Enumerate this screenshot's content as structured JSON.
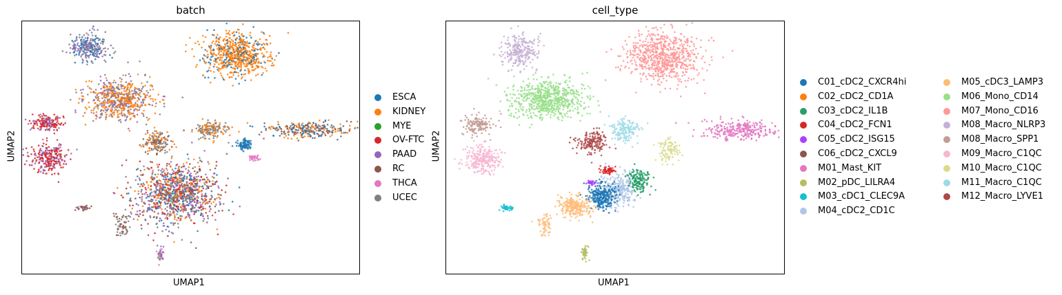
{
  "chart_data": [
    {
      "type": "scatter",
      "title": "batch",
      "xlabel": "UMAP1",
      "ylabel": "UMAP2",
      "grid": false,
      "legend_placement": "right",
      "series": [
        {
          "name": "ESCA",
          "color": "#1f77b4"
        },
        {
          "name": "KIDNEY",
          "color": "#ff7f0e"
        },
        {
          "name": "MYE",
          "color": "#2ca02c"
        },
        {
          "name": "OV-FTC",
          "color": "#d62728"
        },
        {
          "name": "PAAD",
          "color": "#9467bd"
        },
        {
          "name": "RC",
          "color": "#8c564b"
        },
        {
          "name": "THCA",
          "color": "#e377c2"
        },
        {
          "name": "UCEC",
          "color": "#7f7f7f"
        }
      ],
      "clusters": [
        {
          "x": 0.2,
          "y": 0.9,
          "rx": 0.05,
          "ry": 0.05,
          "mix": [
            "#1f77b4",
            "#9467bd",
            "#7f7f7f"
          ],
          "n": 260
        },
        {
          "x": 0.64,
          "y": 0.87,
          "rx": 0.09,
          "ry": 0.08,
          "mix": [
            "#ff7f0e",
            "#ff7f0e",
            "#ff7f0e",
            "#1f77b4"
          ],
          "n": 700
        },
        {
          "x": 0.29,
          "y": 0.69,
          "rx": 0.09,
          "ry": 0.07,
          "mix": [
            "#ff7f0e",
            "#ff7f0e",
            "#7f7f7f",
            "#9467bd"
          ],
          "n": 640
        },
        {
          "x": 0.07,
          "y": 0.6,
          "rx": 0.04,
          "ry": 0.03,
          "mix": [
            "#d62728",
            "#d62728",
            "#9467bd"
          ],
          "n": 160
        },
        {
          "x": 0.4,
          "y": 0.52,
          "rx": 0.04,
          "ry": 0.04,
          "mix": [
            "#ff7f0e",
            "#8c564b",
            "#7f7f7f"
          ],
          "n": 160
        },
        {
          "x": 0.56,
          "y": 0.57,
          "rx": 0.04,
          "ry": 0.03,
          "mix": [
            "#ff7f0e",
            "#7f7f7f"
          ],
          "n": 160
        },
        {
          "x": 0.85,
          "y": 0.57,
          "rx": 0.11,
          "ry": 0.03,
          "mix": [
            "#ff7f0e",
            "#8c564b",
            "#1f77b4"
          ],
          "n": 280
        },
        {
          "x": 0.66,
          "y": 0.51,
          "rx": 0.02,
          "ry": 0.02,
          "mix": [
            "#1f77b4"
          ],
          "n": 80
        },
        {
          "x": 0.69,
          "y": 0.46,
          "rx": 0.015,
          "ry": 0.01,
          "mix": [
            "#e377c2"
          ],
          "n": 30
        },
        {
          "x": 0.08,
          "y": 0.46,
          "rx": 0.05,
          "ry": 0.05,
          "mix": [
            "#d62728",
            "#d62728",
            "#9467bd"
          ],
          "n": 260
        },
        {
          "x": 0.46,
          "y": 0.32,
          "rx": 0.11,
          "ry": 0.11,
          "mix": [
            "#ff7f0e",
            "#8c564b",
            "#9467bd",
            "#7f7f7f",
            "#1f77b4",
            "#d62728"
          ],
          "n": 1100
        },
        {
          "x": 0.18,
          "y": 0.26,
          "rx": 0.02,
          "ry": 0.01,
          "mix": [
            "#8c564b",
            "#9467bd"
          ],
          "n": 30
        },
        {
          "x": 0.3,
          "y": 0.19,
          "rx": 0.02,
          "ry": 0.045,
          "mix": [
            "#8c564b",
            "#7f7f7f"
          ],
          "n": 60
        },
        {
          "x": 0.41,
          "y": 0.08,
          "rx": 0.01,
          "ry": 0.03,
          "mix": [
            "#9467bd",
            "#e377c2",
            "#7f7f7f"
          ],
          "n": 40
        }
      ]
    },
    {
      "type": "scatter",
      "title": "cell_type",
      "xlabel": "UMAP1",
      "ylabel": "UMAP2",
      "grid": false,
      "legend_placement": "right",
      "series": [
        {
          "name": "C01_cDC2_CXCR4hi",
          "color": "#1f77b4"
        },
        {
          "name": "C02_cDC2_CD1A",
          "color": "#ff7f0e"
        },
        {
          "name": "C03_cDC2_IL1B",
          "color": "#279e68"
        },
        {
          "name": "C04_cDC2_FCN1",
          "color": "#d62728"
        },
        {
          "name": "C05_cDC2_ISG15",
          "color": "#aa40fc"
        },
        {
          "name": "C06_cDC2_CXCL9",
          "color": "#8c564b"
        },
        {
          "name": "M01_Mast_KIT",
          "color": "#e377c2"
        },
        {
          "name": "M02_pDC_LILRA4",
          "color": "#b5bd61"
        },
        {
          "name": "M03_cDC1_CLEC9A",
          "color": "#17becf"
        },
        {
          "name": "M04_cDC2_CD1C",
          "color": "#aec7e8"
        },
        {
          "name": "M05_cDC3_LAMP3",
          "color": "#ffbb78"
        },
        {
          "name": "M06_Mono_CD14",
          "color": "#98df8a"
        },
        {
          "name": "M07_Mono_CD16",
          "color": "#ff9896"
        },
        {
          "name": "M08_Macro_NLRP3",
          "color": "#c5b0d5"
        },
        {
          "name": "M08_Macro_SPP1",
          "color": "#c49c94"
        },
        {
          "name": "M09_Macro_C1QC",
          "color": "#f7b6d2"
        },
        {
          "name": "M10_Macro_C1QC",
          "color": "#dbdb8d"
        },
        {
          "name": "M11_Macro_C1QC",
          "color": "#9edae5"
        },
        {
          "name": "M12_Macro_LYVE1",
          "color": "#ad494a"
        }
      ],
      "clusters": [
        {
          "x": 0.22,
          "y": 0.88,
          "rx": 0.05,
          "ry": 0.06,
          "mix": [
            "#c5b0d5"
          ],
          "n": 260
        },
        {
          "x": 0.64,
          "y": 0.86,
          "rx": 0.1,
          "ry": 0.09,
          "mix": [
            "#ff9896"
          ],
          "n": 720
        },
        {
          "x": 0.3,
          "y": 0.69,
          "rx": 0.1,
          "ry": 0.07,
          "mix": [
            "#98df8a"
          ],
          "n": 680
        },
        {
          "x": 0.09,
          "y": 0.59,
          "rx": 0.04,
          "ry": 0.035,
          "mix": [
            "#c49c94"
          ],
          "n": 150
        },
        {
          "x": 0.43,
          "y": 0.52,
          "rx": 0.04,
          "ry": 0.04,
          "mix": [
            "#ad494a"
          ],
          "n": 170
        },
        {
          "x": 0.53,
          "y": 0.57,
          "rx": 0.04,
          "ry": 0.04,
          "mix": [
            "#9edae5"
          ],
          "n": 160
        },
        {
          "x": 0.87,
          "y": 0.57,
          "rx": 0.1,
          "ry": 0.035,
          "mix": [
            "#e377c2"
          ],
          "n": 280
        },
        {
          "x": 0.66,
          "y": 0.49,
          "rx": 0.03,
          "ry": 0.045,
          "mix": [
            "#dbdb8d"
          ],
          "n": 100
        },
        {
          "x": 0.11,
          "y": 0.45,
          "rx": 0.05,
          "ry": 0.05,
          "mix": [
            "#f7b6d2"
          ],
          "n": 260
        },
        {
          "x": 0.51,
          "y": 0.33,
          "rx": 0.05,
          "ry": 0.06,
          "mix": [
            "#aec7e8"
          ],
          "n": 300
        },
        {
          "x": 0.46,
          "y": 0.31,
          "rx": 0.04,
          "ry": 0.05,
          "mix": [
            "#1f77b4"
          ],
          "n": 260
        },
        {
          "x": 0.38,
          "y": 0.27,
          "rx": 0.04,
          "ry": 0.04,
          "mix": [
            "#ffbb78"
          ],
          "n": 230
        },
        {
          "x": 0.57,
          "y": 0.37,
          "rx": 0.03,
          "ry": 0.04,
          "mix": [
            "#279e68"
          ],
          "n": 150
        },
        {
          "x": 0.48,
          "y": 0.41,
          "rx": 0.02,
          "ry": 0.015,
          "mix": [
            "#d62728"
          ],
          "n": 60
        },
        {
          "x": 0.43,
          "y": 0.36,
          "rx": 0.015,
          "ry": 0.01,
          "mix": [
            "#aa40fc"
          ],
          "n": 30
        },
        {
          "x": 0.18,
          "y": 0.26,
          "rx": 0.02,
          "ry": 0.01,
          "mix": [
            "#17becf"
          ],
          "n": 40
        },
        {
          "x": 0.29,
          "y": 0.19,
          "rx": 0.02,
          "ry": 0.045,
          "mix": [
            "#ffbb78"
          ],
          "n": 60
        },
        {
          "x": 0.41,
          "y": 0.08,
          "rx": 0.01,
          "ry": 0.03,
          "mix": [
            "#b5bd61"
          ],
          "n": 40
        }
      ]
    }
  ]
}
